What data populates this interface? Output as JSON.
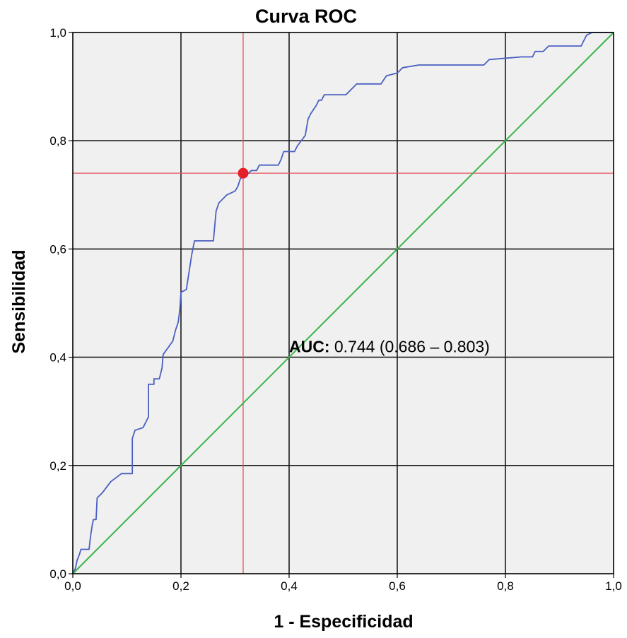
{
  "chart_data": {
    "type": "line",
    "title": "Curva ROC",
    "xlabel": "1 - Especificidad",
    "ylabel": "Sensibilidad",
    "xlim": [
      0,
      1
    ],
    "ylim": [
      0,
      1
    ],
    "x_ticks": [
      "0,0",
      "0,2",
      "0,4",
      "0,6",
      "0,8",
      "1,0"
    ],
    "y_ticks": [
      "0,0",
      "0,2",
      "0,4",
      "0,6",
      "0,8",
      "1,0"
    ],
    "grid": true,
    "series": [
      {
        "color": "#4a5fc1",
        "points": [
          [
            0.0,
            0.0
          ],
          [
            0.005,
            0.01
          ],
          [
            0.008,
            0.025
          ],
          [
            0.012,
            0.035
          ],
          [
            0.015,
            0.045
          ],
          [
            0.03,
            0.045
          ],
          [
            0.033,
            0.07
          ],
          [
            0.036,
            0.09
          ],
          [
            0.038,
            0.1
          ],
          [
            0.043,
            0.1
          ],
          [
            0.045,
            0.14
          ],
          [
            0.055,
            0.15
          ],
          [
            0.07,
            0.17
          ],
          [
            0.09,
            0.185
          ],
          [
            0.11,
            0.185
          ],
          [
            0.11,
            0.25
          ],
          [
            0.115,
            0.265
          ],
          [
            0.13,
            0.27
          ],
          [
            0.14,
            0.29
          ],
          [
            0.14,
            0.35
          ],
          [
            0.15,
            0.35
          ],
          [
            0.15,
            0.36
          ],
          [
            0.16,
            0.36
          ],
          [
            0.165,
            0.38
          ],
          [
            0.167,
            0.405
          ],
          [
            0.185,
            0.43
          ],
          [
            0.19,
            0.45
          ],
          [
            0.195,
            0.465
          ],
          [
            0.198,
            0.49
          ],
          [
            0.2,
            0.52
          ],
          [
            0.21,
            0.525
          ],
          [
            0.22,
            0.59
          ],
          [
            0.225,
            0.615
          ],
          [
            0.26,
            0.615
          ],
          [
            0.265,
            0.67
          ],
          [
            0.27,
            0.685
          ],
          [
            0.285,
            0.7
          ],
          [
            0.3,
            0.707
          ],
          [
            0.305,
            0.715
          ],
          [
            0.31,
            0.73
          ],
          [
            0.325,
            0.74
          ],
          [
            0.33,
            0.745
          ],
          [
            0.34,
            0.745
          ],
          [
            0.345,
            0.755
          ],
          [
            0.38,
            0.755
          ],
          [
            0.385,
            0.765
          ],
          [
            0.39,
            0.78
          ],
          [
            0.41,
            0.78
          ],
          [
            0.415,
            0.79
          ],
          [
            0.43,
            0.81
          ],
          [
            0.435,
            0.84
          ],
          [
            0.44,
            0.85
          ],
          [
            0.45,
            0.865
          ],
          [
            0.455,
            0.875
          ],
          [
            0.46,
            0.875
          ],
          [
            0.465,
            0.885
          ],
          [
            0.505,
            0.885
          ],
          [
            0.525,
            0.905
          ],
          [
            0.57,
            0.905
          ],
          [
            0.58,
            0.92
          ],
          [
            0.6,
            0.925
          ],
          [
            0.61,
            0.935
          ],
          [
            0.64,
            0.94
          ],
          [
            0.76,
            0.94
          ],
          [
            0.77,
            0.95
          ],
          [
            0.83,
            0.955
          ],
          [
            0.85,
            0.955
          ],
          [
            0.855,
            0.965
          ],
          [
            0.87,
            0.965
          ],
          [
            0.88,
            0.975
          ],
          [
            0.94,
            0.975
          ],
          [
            0.945,
            0.985
          ],
          [
            0.95,
            0.995
          ],
          [
            0.96,
            1.0
          ],
          [
            1.0,
            1.0
          ]
        ]
      },
      {
        "color": "#39b54a",
        "points": [
          [
            0,
            0
          ],
          [
            1,
            1
          ]
        ]
      }
    ],
    "cutoff_point": {
      "x": 0.315,
      "y": 0.74,
      "color": "#e6202a"
    },
    "annotation": {
      "label": "AUC:",
      "value": "0.744 (0.686 – 0.803)",
      "x": 0.4,
      "y": 0.42
    },
    "colors": {
      "plot_background": "#f0f0f0",
      "grid": "#1a1a1a",
      "guide_lines": "#e8505a"
    }
  }
}
